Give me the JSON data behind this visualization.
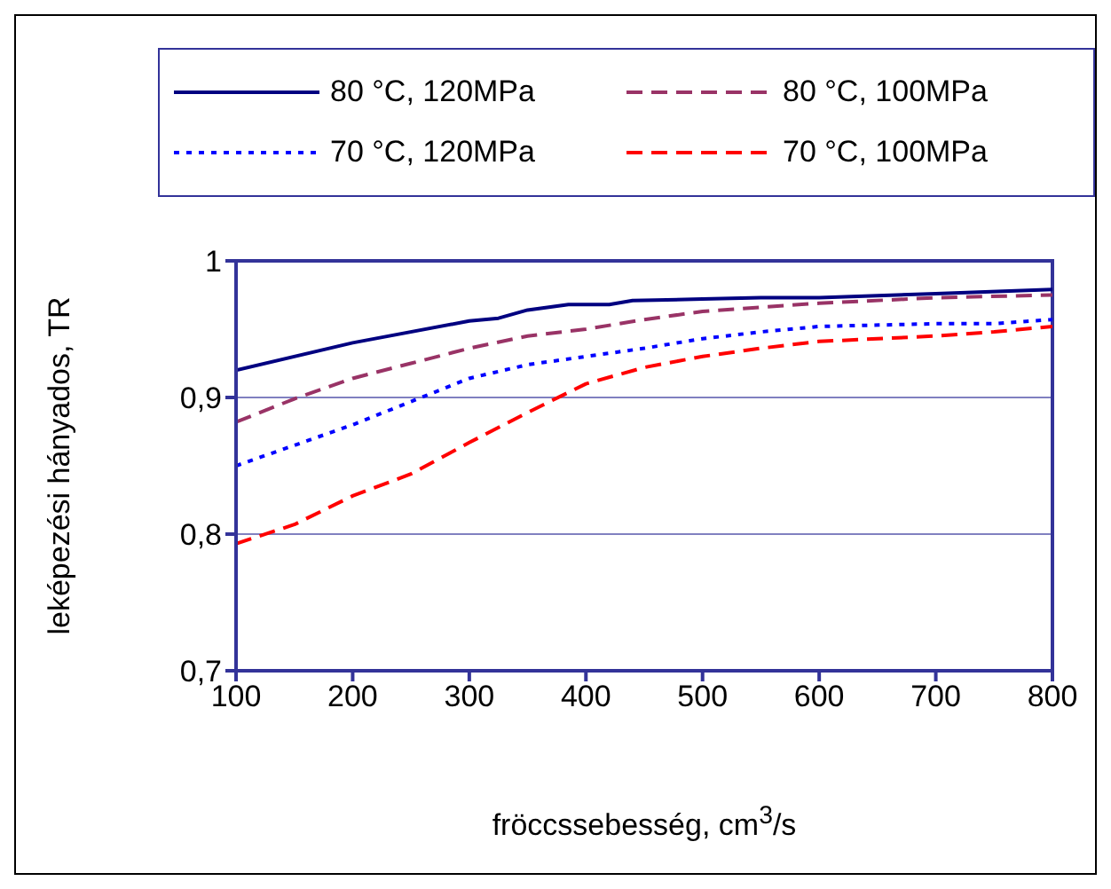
{
  "chart_data": {
    "type": "line",
    "xlabel": "fröccssebesség, cm$^{3}$/s",
    "ylabel": "leképezési hányados, TR",
    "xlim": [
      100,
      800
    ],
    "xticks": [
      100,
      200,
      300,
      400,
      500,
      600,
      700,
      800
    ],
    "ylim": [
      0.7,
      1
    ],
    "yticks": [
      {
        "value": 0.7,
        "label": "0,7"
      },
      {
        "value": 0.8,
        "label": "0,8"
      },
      {
        "value": 0.9,
        "label": "0,9"
      },
      1
    ],
    "grid": "y",
    "legend": "top",
    "marker": "none",
    "series": [
      {
        "name": "80 °C, 120MPa",
        "color": "#000080",
        "line_style": "solid",
        "x": [
          100,
          200,
          300,
          325,
          350,
          385,
          420,
          440,
          500,
          550,
          600,
          700,
          800
        ],
        "values": [
          0.92,
          0.94,
          0.956,
          0.958,
          0.964,
          0.968,
          0.968,
          0.971,
          0.972,
          0.973,
          0.973,
          0.976,
          0.979
        ]
      },
      {
        "name": "80 °C, 100MPa",
        "color": "#993366",
        "line_style": "dashed",
        "x": [
          100,
          150,
          200,
          250,
          300,
          350,
          400,
          450,
          500,
          600,
          700,
          800
        ],
        "values": [
          0.882,
          0.899,
          0.914,
          0.925,
          0.936,
          0.945,
          0.95,
          0.957,
          0.963,
          0.969,
          0.973,
          0.975
        ]
      },
      {
        "name": "70 °C, 120MPa",
        "color": "#0000ff",
        "line_style": "dotted",
        "x": [
          100,
          200,
          250,
          300,
          350,
          400,
          450,
          500,
          550,
          600,
          700,
          750,
          800
        ],
        "values": [
          0.85,
          0.88,
          0.897,
          0.914,
          0.924,
          0.93,
          0.936,
          0.943,
          0.948,
          0.952,
          0.954,
          0.954,
          0.957
        ]
      },
      {
        "name": "70 °C, 100MPa",
        "color": "#ff0000",
        "line_style": "dashed",
        "x": [
          100,
          150,
          200,
          250,
          300,
          350,
          400,
          450,
          500,
          550,
          600,
          700,
          750,
          800
        ],
        "values": [
          0.793,
          0.807,
          0.828,
          0.844,
          0.867,
          0.889,
          0.91,
          0.922,
          0.93,
          0.936,
          0.941,
          0.945,
          0.948,
          0.952
        ]
      }
    ]
  }
}
